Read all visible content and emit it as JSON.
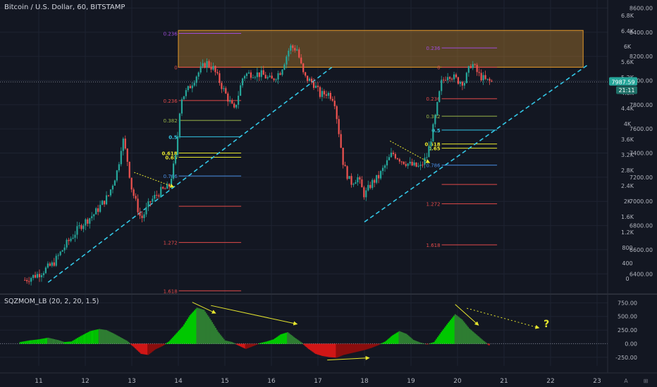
{
  "header": {
    "symbol": "Bitcoin / U.S. Dollar",
    "interval": "60",
    "exchange": "BITSTAMP"
  },
  "indicator": {
    "label": "SQZMOM_LB (20, 2, 20, 1.5)"
  },
  "price_badge": {
    "value": "7987.59",
    "countdown": "21:11"
  },
  "colors": {
    "background": "#131722",
    "grid": "#1e2331",
    "up_candle": "#26a69a",
    "down_candle": "#ef5350",
    "trendline": "#33c7e6",
    "resistance_zone": "#c88a2c",
    "annotation_arrow": "#e6e62e",
    "momentum_up_strong": "#00c800",
    "momentum_up_weak": "#2e7d32",
    "momentum_down": "#d01616"
  },
  "footer_glyphs": {
    "auto": "A",
    "log": "⊞"
  },
  "chart_data": [
    {
      "type": "line",
      "title": "Bitcoin / U.S. Dollar, 60, BITSTAMP",
      "x_ticks": [
        "11",
        "12",
        "13",
        "14",
        "15",
        "16",
        "17",
        "18",
        "19",
        "20",
        "21",
        "22",
        "23"
      ],
      "y_ticks_price": [
        "8600.00",
        "8400.00",
        "8200.00",
        "8000.00",
        "7800.00",
        "7600.00",
        "7400.00",
        "7200.00",
        "7000.00",
        "6800.00",
        "6600.00",
        "6400.00"
      ],
      "y_ticks_secondary": [
        "6.8K",
        "6.4K",
        "6K",
        "5.6K",
        "5.2K",
        "4.8K",
        "4.4K",
        "4K",
        "3.6K",
        "3.2K",
        "2.8K",
        "2.4K",
        "2K",
        "1.6K",
        "1.2K",
        "800",
        "400",
        "0"
      ],
      "ylim": [
        6320,
        8620
      ],
      "price_path": [
        [
          10.7,
          6350
        ],
        [
          11.0,
          6400
        ],
        [
          11.3,
          6480
        ],
        [
          11.6,
          6650
        ],
        [
          11.9,
          6800
        ],
        [
          12.2,
          6900
        ],
        [
          12.5,
          7050
        ],
        [
          12.7,
          7270
        ],
        [
          12.8,
          7530
        ],
        [
          12.9,
          7350
        ],
        [
          13.0,
          7100
        ],
        [
          13.2,
          6850
        ],
        [
          13.4,
          7000
        ],
        [
          13.6,
          7080
        ],
        [
          13.8,
          7120
        ],
        [
          13.95,
          7380
        ],
        [
          14.05,
          7850
        ],
        [
          14.2,
          7920
        ],
        [
          14.4,
          8050
        ],
        [
          14.6,
          8150
        ],
        [
          14.75,
          8100
        ],
        [
          15.0,
          7900
        ],
        [
          15.2,
          7750
        ],
        [
          15.4,
          8050
        ],
        [
          15.6,
          8060
        ],
        [
          15.8,
          8050
        ],
        [
          16.0,
          8000
        ],
        [
          16.2,
          8080
        ],
        [
          16.4,
          8280
        ],
        [
          16.55,
          8260
        ],
        [
          16.7,
          8030
        ],
        [
          16.9,
          7980
        ],
        [
          17.05,
          7880
        ],
        [
          17.2,
          7900
        ],
        [
          17.35,
          7850
        ],
        [
          17.55,
          7300
        ],
        [
          17.7,
          7150
        ],
        [
          17.85,
          7200
        ],
        [
          18.0,
          7050
        ],
        [
          18.15,
          7150
        ],
        [
          18.3,
          7200
        ],
        [
          18.45,
          7300
        ],
        [
          18.6,
          7400
        ],
        [
          18.8,
          7340
        ],
        [
          19.0,
          7300
        ],
        [
          19.2,
          7280
        ],
        [
          19.35,
          7380
        ],
        [
          19.5,
          7650
        ],
        [
          19.65,
          7980
        ],
        [
          19.8,
          8060
        ],
        [
          20.0,
          8000
        ],
        [
          20.15,
          7990
        ],
        [
          20.3,
          8150
        ],
        [
          20.45,
          8050
        ],
        [
          20.6,
          8000
        ],
        [
          20.75,
          7987.59
        ]
      ],
      "resistance_zone": {
        "x_start": 14.0,
        "x_end": 22.7,
        "y_low": 8110,
        "y_high": 8415
      },
      "trendlines": [
        {
          "name": "",
          "points": [
            [
              11.2,
              6330
            ],
            [
              17.3,
              8110
            ]
          ]
        },
        {
          "name": "",
          "points": [
            [
              18.0,
              6830
            ],
            [
              22.8,
              8130
            ]
          ]
        }
      ],
      "fib_left": {
        "x_start": 13.95,
        "x_end": 15.35,
        "levels": [
          {
            "label": "0.236",
            "price": 8390
          },
          {
            "label": "0",
            "price": 8110
          },
          {
            "label": "0.236",
            "price": 7835
          },
          {
            "label": "0.382",
            "price": 7670
          },
          {
            "label": "0.5",
            "price": 7535
          },
          {
            "label": "0.618",
            "price": 7400
          },
          {
            "label": "0.65",
            "price": 7365
          },
          {
            "label": "0.786",
            "price": 7210
          },
          {
            "label": "",
            "price": 6960
          },
          {
            "label": "1.272",
            "price": 6660
          },
          {
            "label": "1.618",
            "price": 6260
          }
        ]
      },
      "fib_right": {
        "x_start": 19.6,
        "x_end": 20.85,
        "levels": [
          {
            "label": "0.236",
            "price": 8270
          },
          {
            "label": "0",
            "price": 8110
          },
          {
            "label": "0.236",
            "price": 7850
          },
          {
            "label": "0.382",
            "price": 7705
          },
          {
            "label": "0.5",
            "price": 7590
          },
          {
            "label": "0.618",
            "price": 7475
          },
          {
            "label": "0.65",
            "price": 7440
          },
          {
            "label": "0.786",
            "price": 7300
          },
          {
            "label": "",
            "price": 7140
          },
          {
            "label": "1.272",
            "price": 6980
          },
          {
            "label": "1.618",
            "price": 6640
          }
        ]
      }
    },
    {
      "type": "bar",
      "title": "SQZMOM_LB (20, 2, 20, 1.5)",
      "y_ticks": [
        "750.00",
        "500.00",
        "250.00",
        "0.00",
        "-250.00"
      ],
      "ylim": [
        -330,
        780
      ],
      "x": [
        10.6,
        10.8,
        11.0,
        11.2,
        11.4,
        11.55,
        11.7,
        11.9,
        12.1,
        12.3,
        12.45,
        12.6,
        12.75,
        12.9,
        13.05,
        13.2,
        13.35,
        13.5,
        13.65,
        13.8,
        13.95,
        14.1,
        14.25,
        14.4,
        14.55,
        14.7,
        14.85,
        15.0,
        15.15,
        15.3,
        15.45,
        15.6,
        15.75,
        15.9,
        16.05,
        16.2,
        16.35,
        16.5,
        16.65,
        16.8,
        16.95,
        17.1,
        17.25,
        17.4,
        17.55,
        17.7,
        17.85,
        18.0,
        18.15,
        18.3,
        18.45,
        18.6,
        18.75,
        18.9,
        19.05,
        19.2,
        19.35,
        19.5,
        19.65,
        19.8,
        19.95,
        20.1,
        20.25,
        20.4,
        20.55,
        20.7
      ],
      "values": [
        30,
        60,
        80,
        110,
        70,
        30,
        40,
        140,
        230,
        270,
        250,
        190,
        120,
        50,
        -60,
        -180,
        -200,
        -100,
        -40,
        40,
        180,
        320,
        520,
        660,
        620,
        430,
        220,
        60,
        30,
        -30,
        -90,
        -40,
        10,
        40,
        80,
        170,
        210,
        110,
        20,
        -90,
        -180,
        -220,
        -240,
        -250,
        -200,
        -170,
        -140,
        -110,
        -70,
        -20,
        40,
        150,
        230,
        180,
        70,
        20,
        -10,
        30,
        210,
        380,
        540,
        440,
        280,
        170,
        60,
        -40
      ]
    }
  ]
}
